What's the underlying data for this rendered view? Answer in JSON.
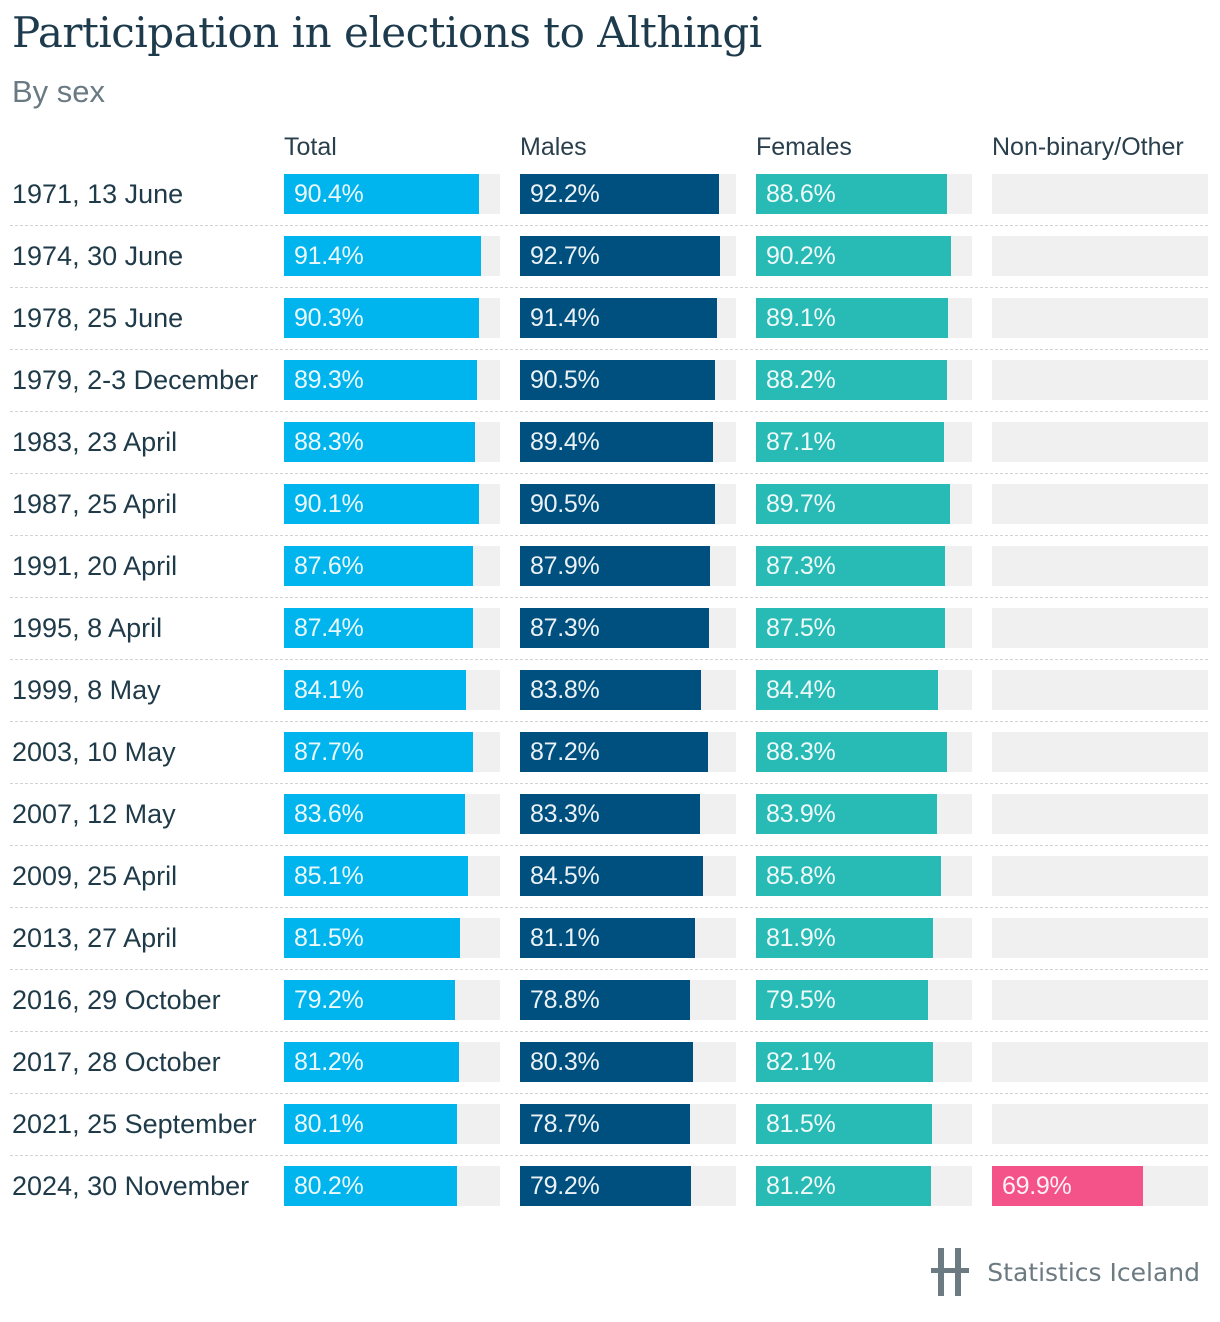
{
  "title": "Participation in elections to Althingi",
  "subtitle": "By sex",
  "logo_text": "Statistics Iceland",
  "chart_data": {
    "type": "bar",
    "title": "Participation in elections to Althingi",
    "subtitle": "By sex",
    "orientation": "horizontal",
    "xlim": [
      0,
      100
    ],
    "unit": "%",
    "categories": [
      "1971, 13 June",
      "1974, 30 June",
      "1978, 25 June",
      "1979, 2-3 December",
      "1983, 23 April",
      "1987, 25 April",
      "1991, 20 April",
      "1995, 8 April",
      "1999, 8 May",
      "2003, 10 May",
      "2007, 12 May",
      "2009, 25 April",
      "2013, 27 April",
      "2016, 29 October",
      "2017, 28 October",
      "2021, 25 September",
      "2024, 30 November"
    ],
    "series": [
      {
        "name": "Total",
        "color": "#00b4ed",
        "values": [
          90.4,
          91.4,
          90.3,
          89.3,
          88.3,
          90.1,
          87.6,
          87.4,
          84.1,
          87.7,
          83.6,
          85.1,
          81.5,
          79.2,
          81.2,
          80.1,
          80.2
        ]
      },
      {
        "name": "Males",
        "color": "#00507f",
        "values": [
          92.2,
          92.7,
          91.4,
          90.5,
          89.4,
          90.5,
          87.9,
          87.3,
          83.8,
          87.2,
          83.3,
          84.5,
          81.1,
          78.8,
          80.3,
          78.7,
          79.2
        ]
      },
      {
        "name": "Females",
        "color": "#28bab5",
        "values": [
          88.6,
          90.2,
          89.1,
          88.2,
          87.1,
          89.7,
          87.3,
          87.5,
          84.4,
          88.3,
          83.9,
          85.8,
          81.9,
          79.5,
          82.1,
          81.5,
          81.2
        ]
      },
      {
        "name": "Non-binary/Other",
        "color": "#f4538a",
        "values": [
          null,
          null,
          null,
          null,
          null,
          null,
          null,
          null,
          null,
          null,
          null,
          null,
          null,
          null,
          null,
          null,
          69.9
        ]
      }
    ],
    "grid": false,
    "legend": "column-headers"
  }
}
